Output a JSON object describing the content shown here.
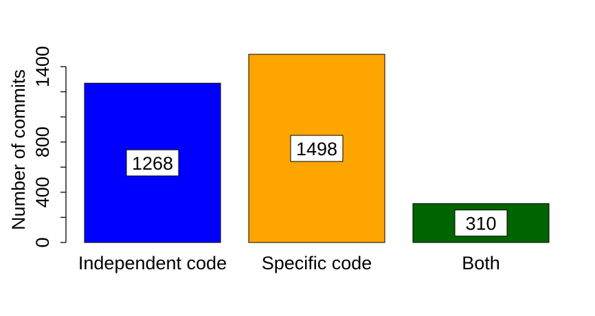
{
  "chart_data": {
    "type": "bar",
    "title": "",
    "xlabel": "",
    "ylabel": "Number of commits",
    "categories": [
      "Independent code",
      "Specific code",
      "Both"
    ],
    "values": [
      1268,
      1498,
      310
    ],
    "data_labels": [
      "1268",
      "1498",
      "310"
    ],
    "colors": [
      "#0000ff",
      "#ffa500",
      "#006400"
    ],
    "ylim": [
      0,
      1400
    ],
    "y_ticks": [
      0,
      200,
      400,
      600,
      800,
      1000,
      1200,
      1400
    ],
    "y_tick_labels": [
      "0",
      "",
      "400",
      "",
      "800",
      "",
      "",
      "1400"
    ],
    "grid": false,
    "legend": "none"
  }
}
